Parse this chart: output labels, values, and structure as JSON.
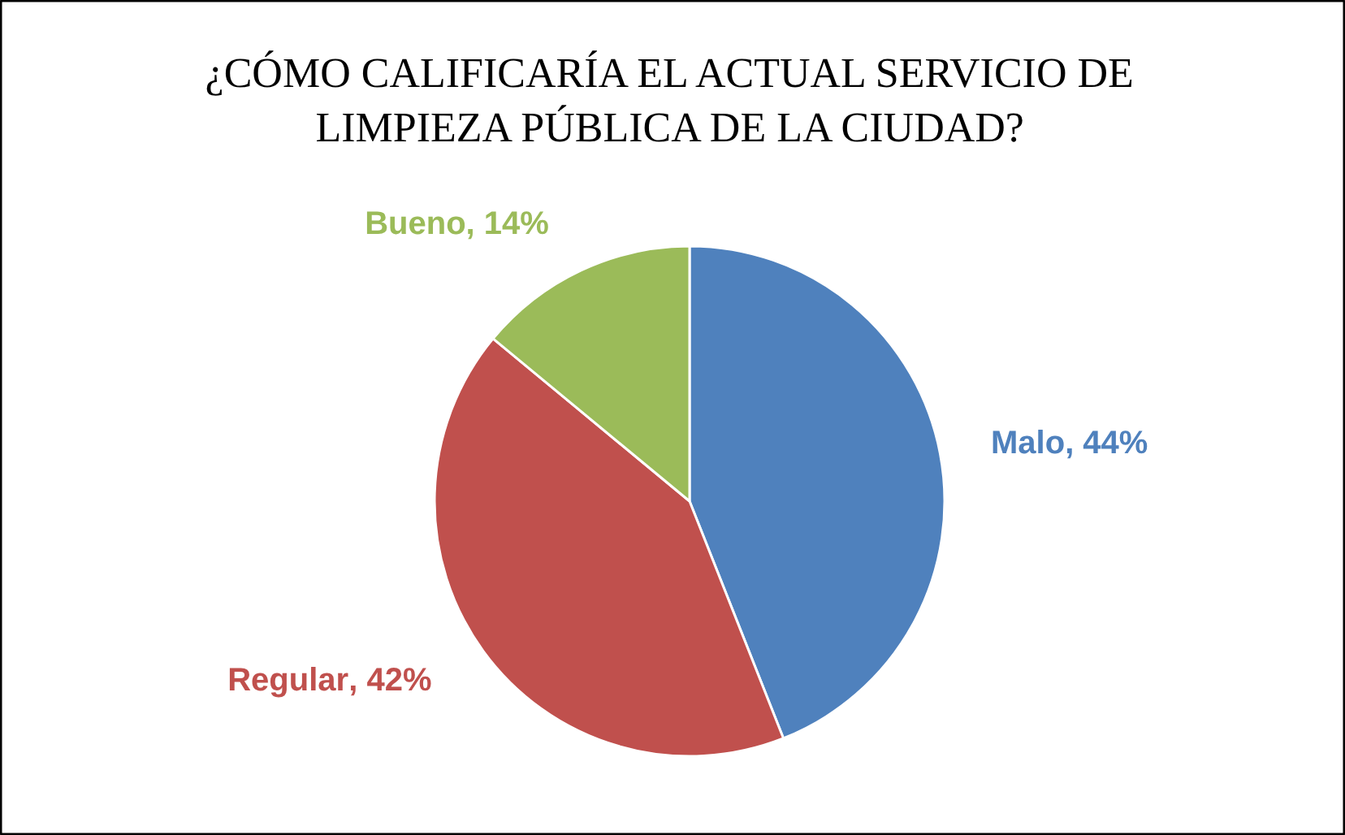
{
  "chart_data": {
    "type": "pie",
    "title": "¿CÓMO CALIFICARÍA EL ACTUAL SERVICIO DE\nLIMPIEZA PÚBLICA DE LA CIUDAD?",
    "categories": [
      "Malo",
      "Regular",
      "Bueno"
    ],
    "values": [
      44,
      42,
      14
    ],
    "value_labels": [
      ", 44%",
      ", 42%",
      ", 14%"
    ],
    "colors": [
      "#4f81bd",
      "#c0504d",
      "#9bbb59"
    ]
  }
}
